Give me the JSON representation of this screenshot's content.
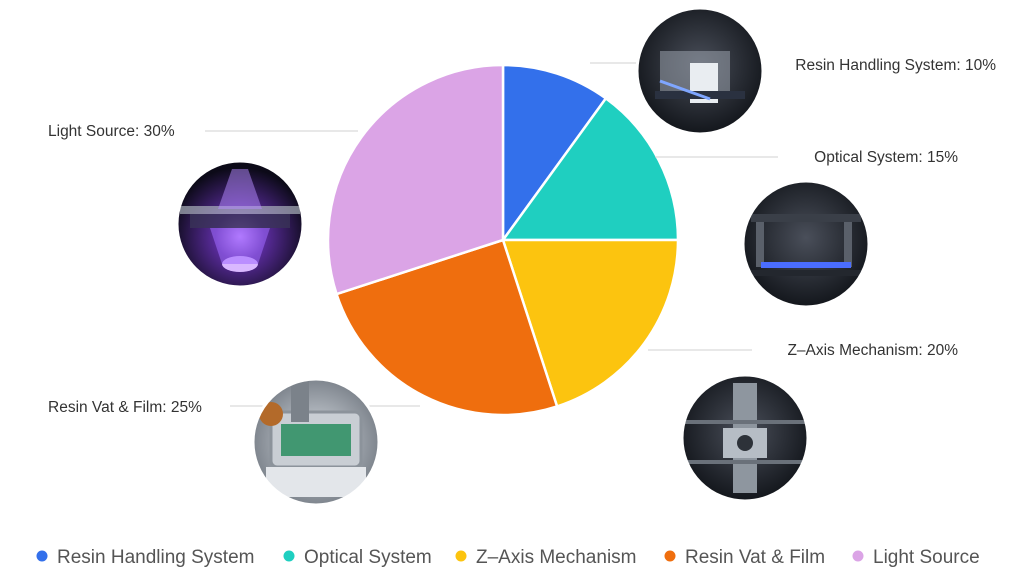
{
  "chart_data": {
    "type": "pie",
    "title": "",
    "slices": [
      {
        "label": "Resin Handling System",
        "value": 10,
        "color": "#3370eb",
        "callout": "Resin Handling System: 10%",
        "icon": "resin-handling-photo-icon"
      },
      {
        "label": "Optical System",
        "value": 15,
        "color": "#1fcfc0",
        "callout": "Optical System: 15%",
        "icon": "optical-system-photo-icon"
      },
      {
        "label": "Z-Axis Mechanism",
        "value": 20,
        "color": "#fcc40f",
        "callout": "Z–Axis Mechanism: 20%",
        "icon": "z-axis-mechanism-photo-icon"
      },
      {
        "label": "Resin Vat & Film",
        "value": 25,
        "color": "#ef6e0e",
        "callout": "Resin Vat & Film: 25%",
        "icon": "resin-vat-photo-icon"
      },
      {
        "label": "Light Source",
        "value": 30,
        "color": "#dba4e6",
        "callout": "Light Source: 30%",
        "icon": "light-source-photo-icon"
      }
    ],
    "legend": {
      "position": "bottom",
      "entries": [
        "Resin Handling System",
        "Optical System",
        "Z–Axis Mechanism",
        "Resin Vat & Film",
        "Light Source"
      ]
    }
  }
}
